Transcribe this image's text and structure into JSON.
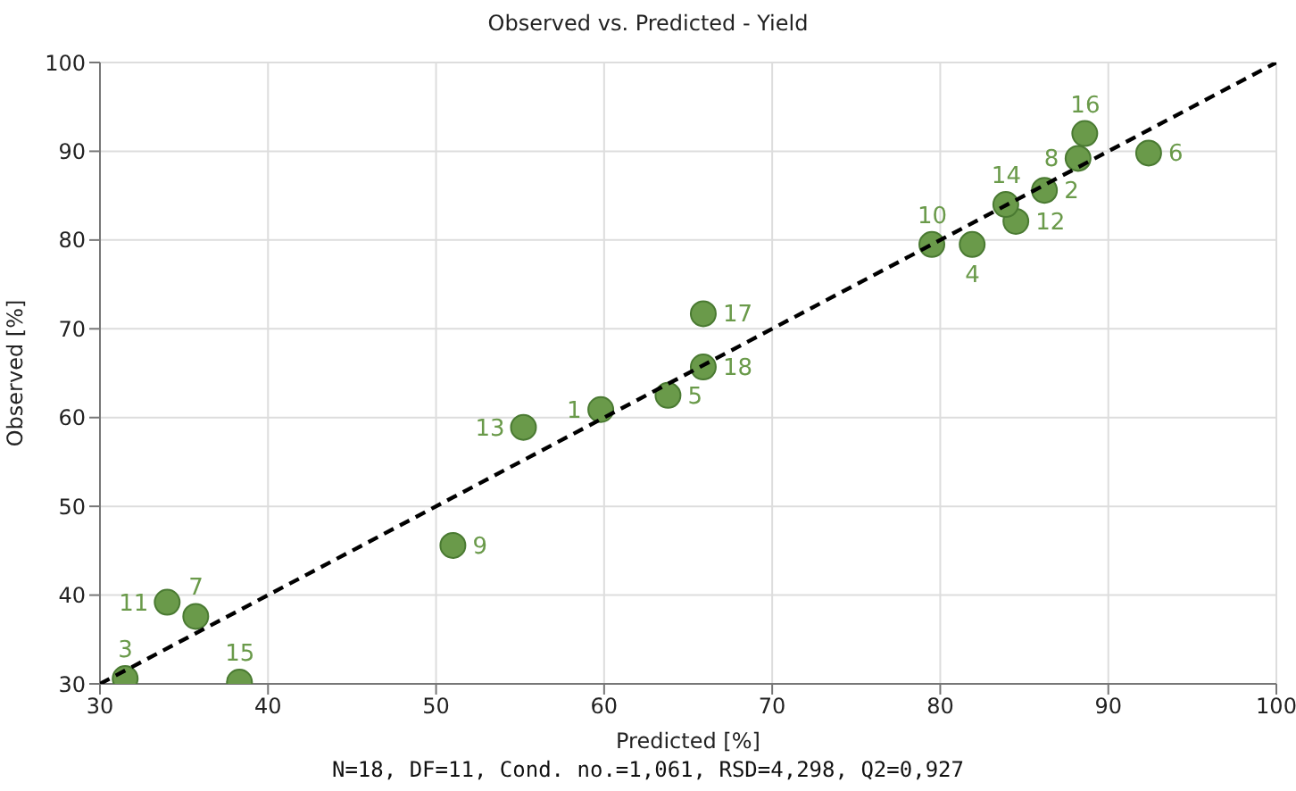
{
  "chart_data": {
    "type": "scatter",
    "title": "Observed vs. Predicted - Yield",
    "xlabel": "Predicted [%]",
    "ylabel": "Observed [%]",
    "annotations": [
      "N=18, DF=11, Cond. no.=1,061, RSD=4,298, Q2=0,927",
      {
        "text": "1",
        "x": 59.8,
        "y": 60.9
      },
      {
        "text": "2",
        "x": 86.2,
        "y": 85.6
      },
      {
        "text": "3",
        "x": 31.5,
        "y": 30.6
      },
      {
        "text": "4",
        "x": 81.9,
        "y": 79.5
      },
      {
        "text": "5",
        "x": 63.8,
        "y": 62.5
      },
      {
        "text": "6",
        "x": 92.4,
        "y": 89.8
      },
      {
        "text": "7",
        "x": 35.7,
        "y": 37.6
      },
      {
        "text": "8",
        "x": 88.2,
        "y": 89.2
      },
      {
        "text": "9",
        "x": 51.0,
        "y": 45.6
      },
      {
        "text": "10",
        "x": 79.5,
        "y": 79.5
      },
      {
        "text": "11",
        "x": 34.0,
        "y": 39.2
      },
      {
        "text": "12",
        "x": 84.5,
        "y": 82.1
      },
      {
        "text": "13",
        "x": 55.2,
        "y": 58.9
      },
      {
        "text": "14",
        "x": 83.9,
        "y": 84.0
      },
      {
        "text": "15",
        "x": 38.3,
        "y": 30.2
      },
      {
        "text": "16",
        "x": 88.6,
        "y": 92.0
      },
      {
        "text": "17",
        "x": 65.9,
        "y": 71.7
      },
      {
        "text": "18",
        "x": 65.9,
        "y": 65.7
      }
    ],
    "xlim": [
      30,
      100
    ],
    "ylim": [
      30,
      100
    ],
    "xticks": [
      30,
      40,
      50,
      60,
      70,
      80,
      90,
      100
    ],
    "yticks": [
      30,
      40,
      50,
      60,
      70,
      80,
      90,
      100
    ],
    "grid": true,
    "legend": false,
    "series": [
      {
        "color": "#6a9a4a",
        "marker": "circle",
        "x": [
          59.8,
          86.2,
          31.5,
          81.9,
          63.8,
          92.4,
          35.7,
          88.2,
          51.0,
          79.5,
          34.0,
          84.5,
          55.2,
          83.9,
          38.3,
          88.6,
          65.9,
          65.9
        ],
        "values": [
          60.9,
          85.6,
          30.6,
          79.5,
          62.5,
          89.8,
          37.6,
          89.2,
          45.6,
          79.5,
          39.2,
          82.1,
          58.9,
          84.0,
          30.2,
          92.0,
          71.7,
          65.7
        ]
      },
      {
        "type": "line",
        "color": "#000000",
        "line_style": "dashed",
        "marker": "none",
        "x": [
          30,
          100
        ],
        "values": [
          30,
          100
        ]
      }
    ]
  }
}
